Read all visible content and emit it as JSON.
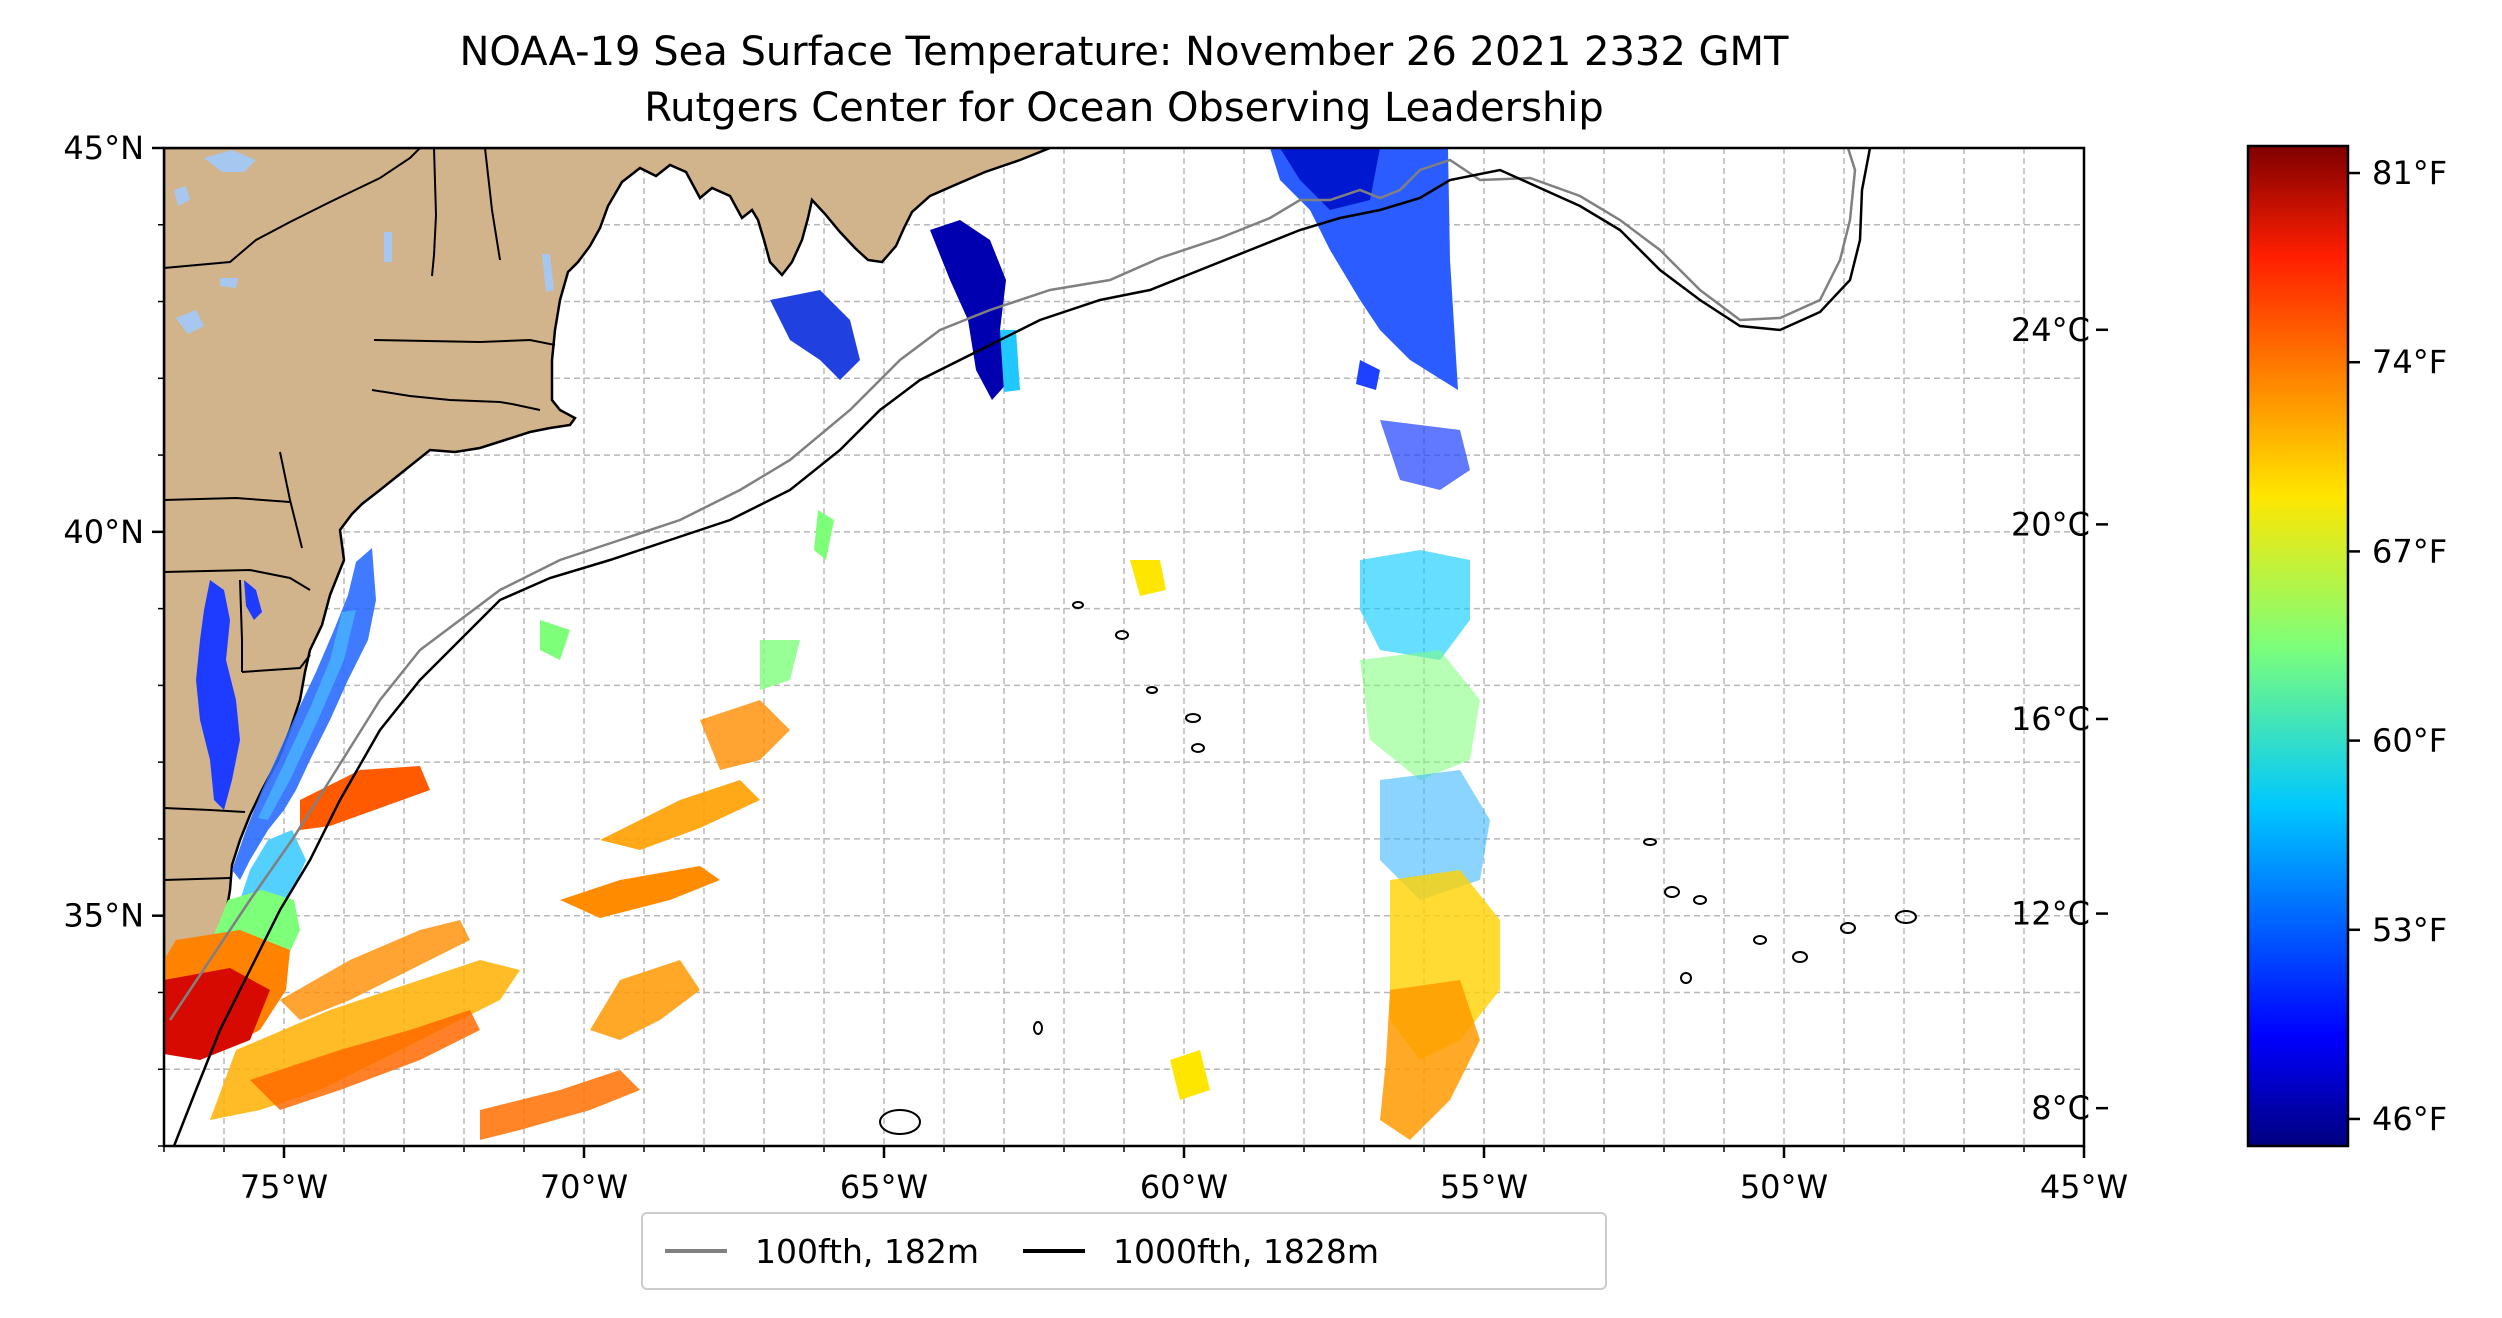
{
  "title_line1": "NOAA-19 Sea Surface Temperature: November 26 2021 2332 GMT",
  "title_line2": "Rutgers Center for Ocean Observing Leadership",
  "map": {
    "lon_range": [
      -77,
      -45
    ],
    "lat_range": [
      32,
      45
    ],
    "lon_ticks": [
      {
        "value": -75,
        "label": "75°W"
      },
      {
        "value": -70,
        "label": "70°W"
      },
      {
        "value": -65,
        "label": "65°W"
      },
      {
        "value": -60,
        "label": "60°W"
      },
      {
        "value": -55,
        "label": "55°W"
      },
      {
        "value": -50,
        "label": "50°W"
      },
      {
        "value": -45,
        "label": "45°W"
      }
    ],
    "lat_ticks": [
      {
        "value": 45,
        "label": "45°N"
      },
      {
        "value": 40,
        "label": "40°N"
      },
      {
        "value": 35,
        "label": "35°N"
      }
    ],
    "grid": "dashed light gray, every 1 degree",
    "land_color": "#d2b48c",
    "lake_color": "#a6c8f0"
  },
  "legend": {
    "items": [
      {
        "label": "100fth, 182m",
        "color": "#808080"
      },
      {
        "label": "1000fth, 1828m",
        "color": "#000000"
      }
    ]
  },
  "colorbar": {
    "colormap": "jet",
    "range_f": [
      45,
      82
    ],
    "fahrenheit_ticks": [
      {
        "value": 81,
        "label": "81°F"
      },
      {
        "value": 74,
        "label": "74°F"
      },
      {
        "value": 67,
        "label": "67°F"
      },
      {
        "value": 60,
        "label": "60°F"
      },
      {
        "value": 53,
        "label": "53°F"
      },
      {
        "value": 46,
        "label": "46°F"
      }
    ],
    "celsius_ticks": [
      {
        "value": 24,
        "label": "24°C"
      },
      {
        "value": 20,
        "label": "20°C"
      },
      {
        "value": 16,
        "label": "16°C"
      },
      {
        "value": 12,
        "label": "12°C"
      },
      {
        "value": 8,
        "label": "8°C"
      }
    ]
  }
}
